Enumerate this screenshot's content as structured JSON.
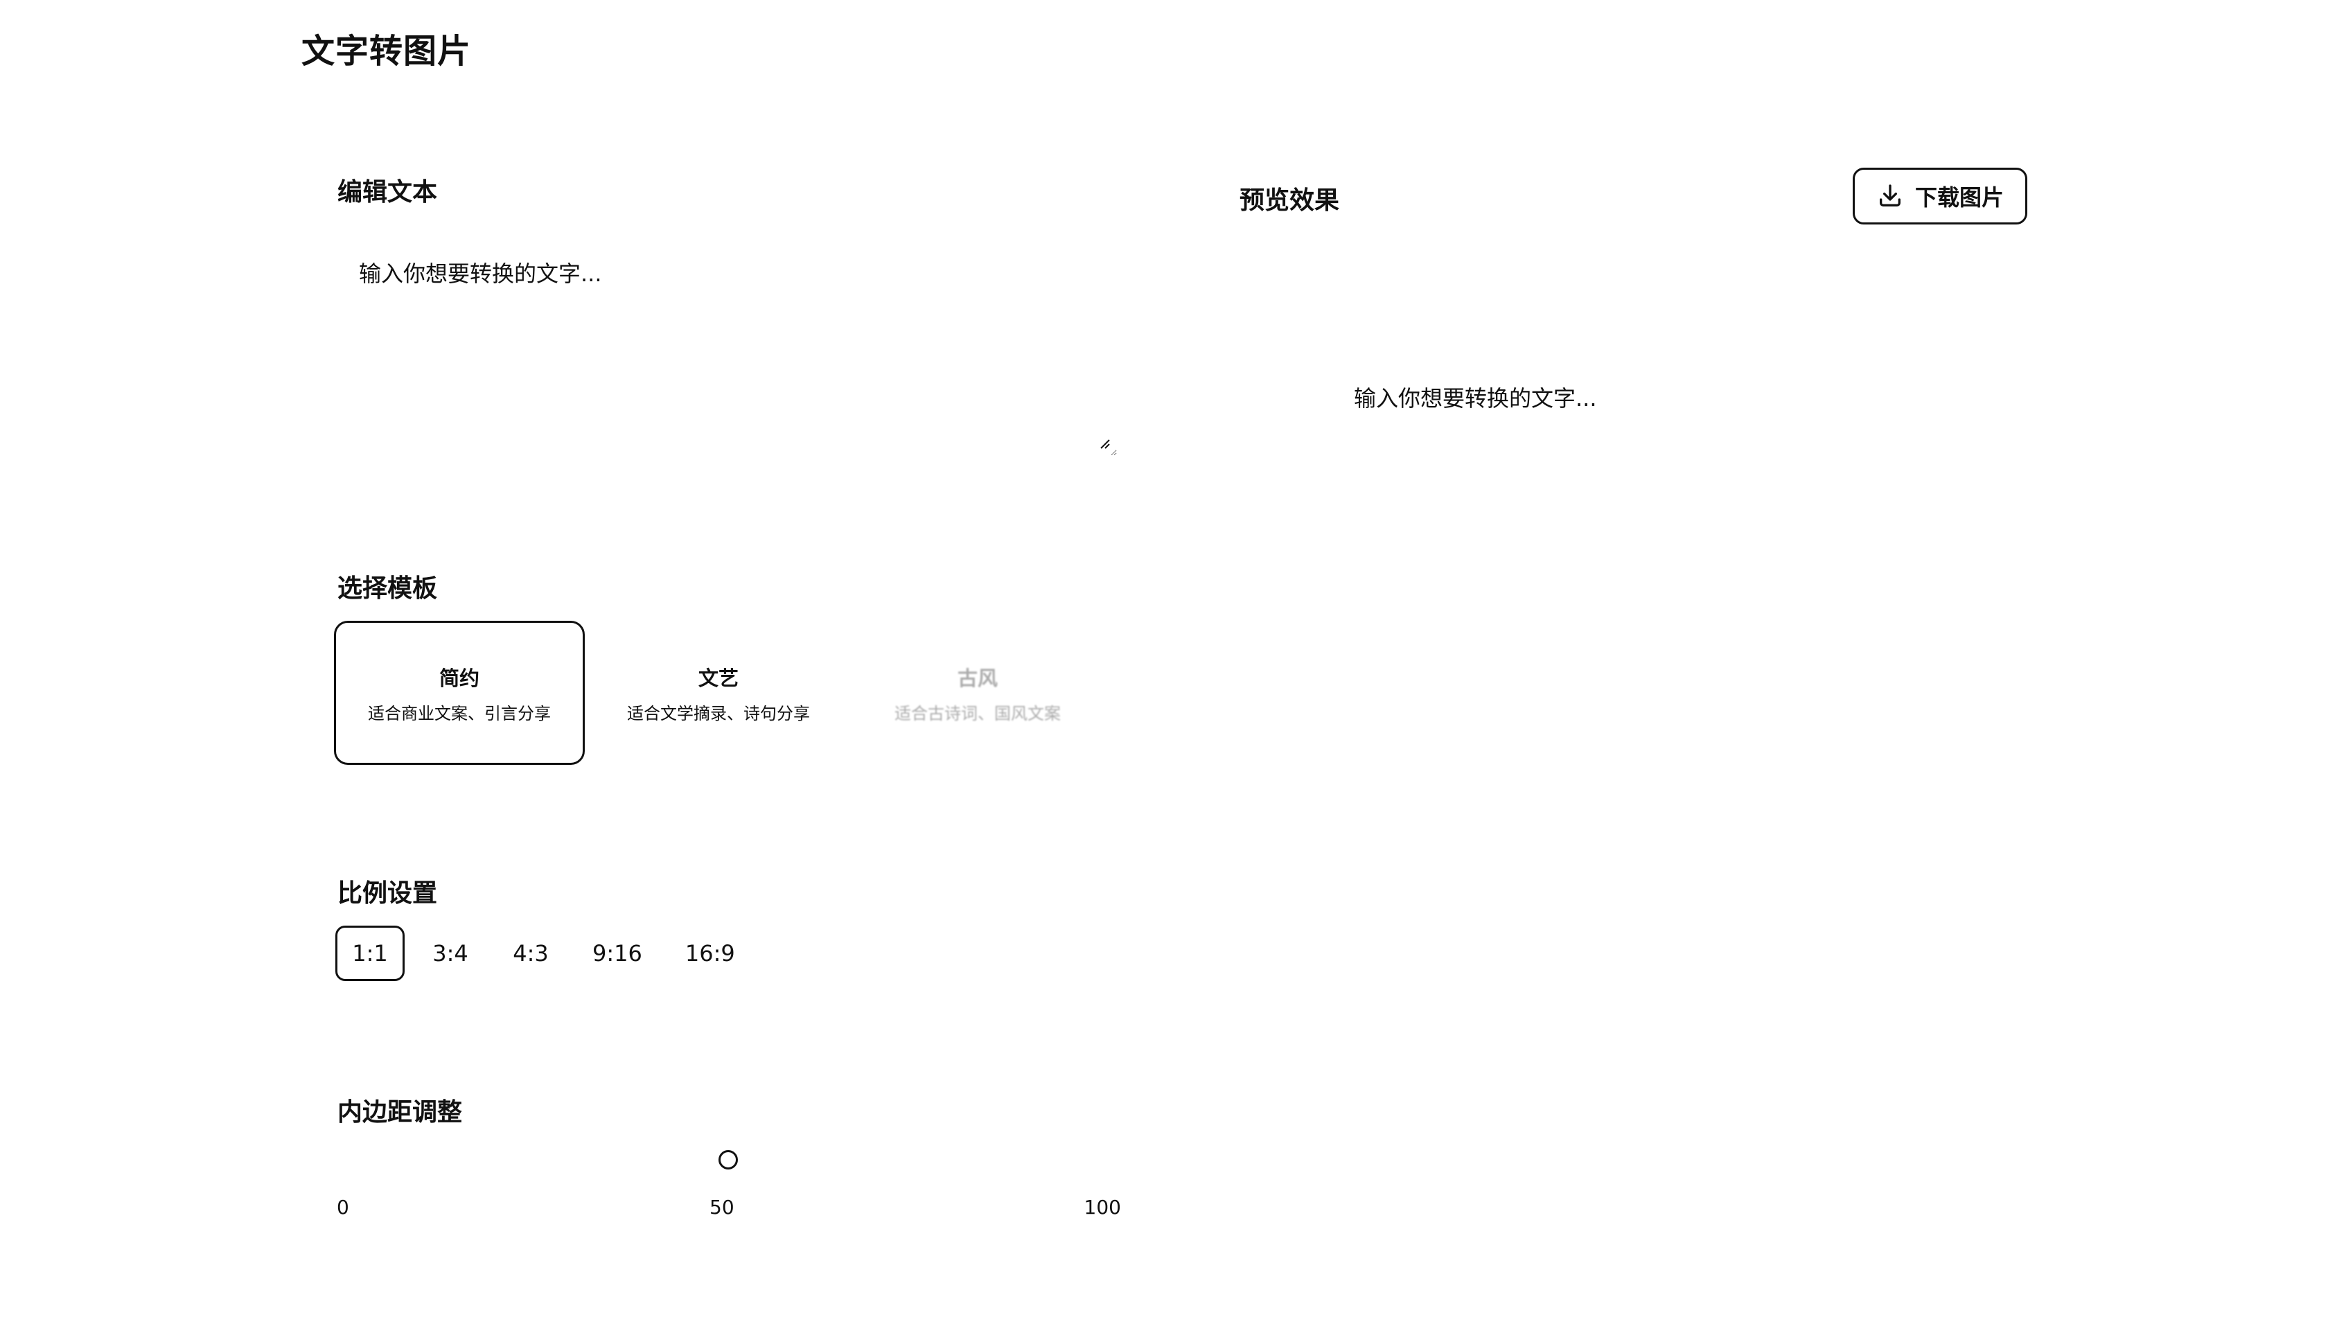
{
  "app": {
    "title": "文字转图片"
  },
  "editor": {
    "section_title": "编辑文本",
    "placeholder": "输入你想要转换的文字...",
    "value": ""
  },
  "templates": {
    "section_title": "选择模板",
    "items": [
      {
        "name": "简约",
        "desc": "适合商业文案、引言分享",
        "selected": true
      },
      {
        "name": "文艺",
        "desc": "适合文学摘录、诗句分享",
        "selected": false
      },
      {
        "name": "古风",
        "desc": "适合古诗词、国风文案",
        "selected": false
      }
    ]
  },
  "ratio": {
    "section_title": "比例设置",
    "options": [
      "1:1",
      "3:4",
      "4:3",
      "9:16",
      "16:9"
    ],
    "selected": "1:1"
  },
  "padding": {
    "section_title": "内边距调整",
    "min": "0",
    "mid": "50",
    "max": "100",
    "value": 50
  },
  "preview": {
    "section_title": "预览效果",
    "download_label": "下载图片",
    "placeholder_text": "输入你想要转换的文字..."
  },
  "icons": {
    "download": "download-icon",
    "resize": "resize-handle-icon"
  }
}
